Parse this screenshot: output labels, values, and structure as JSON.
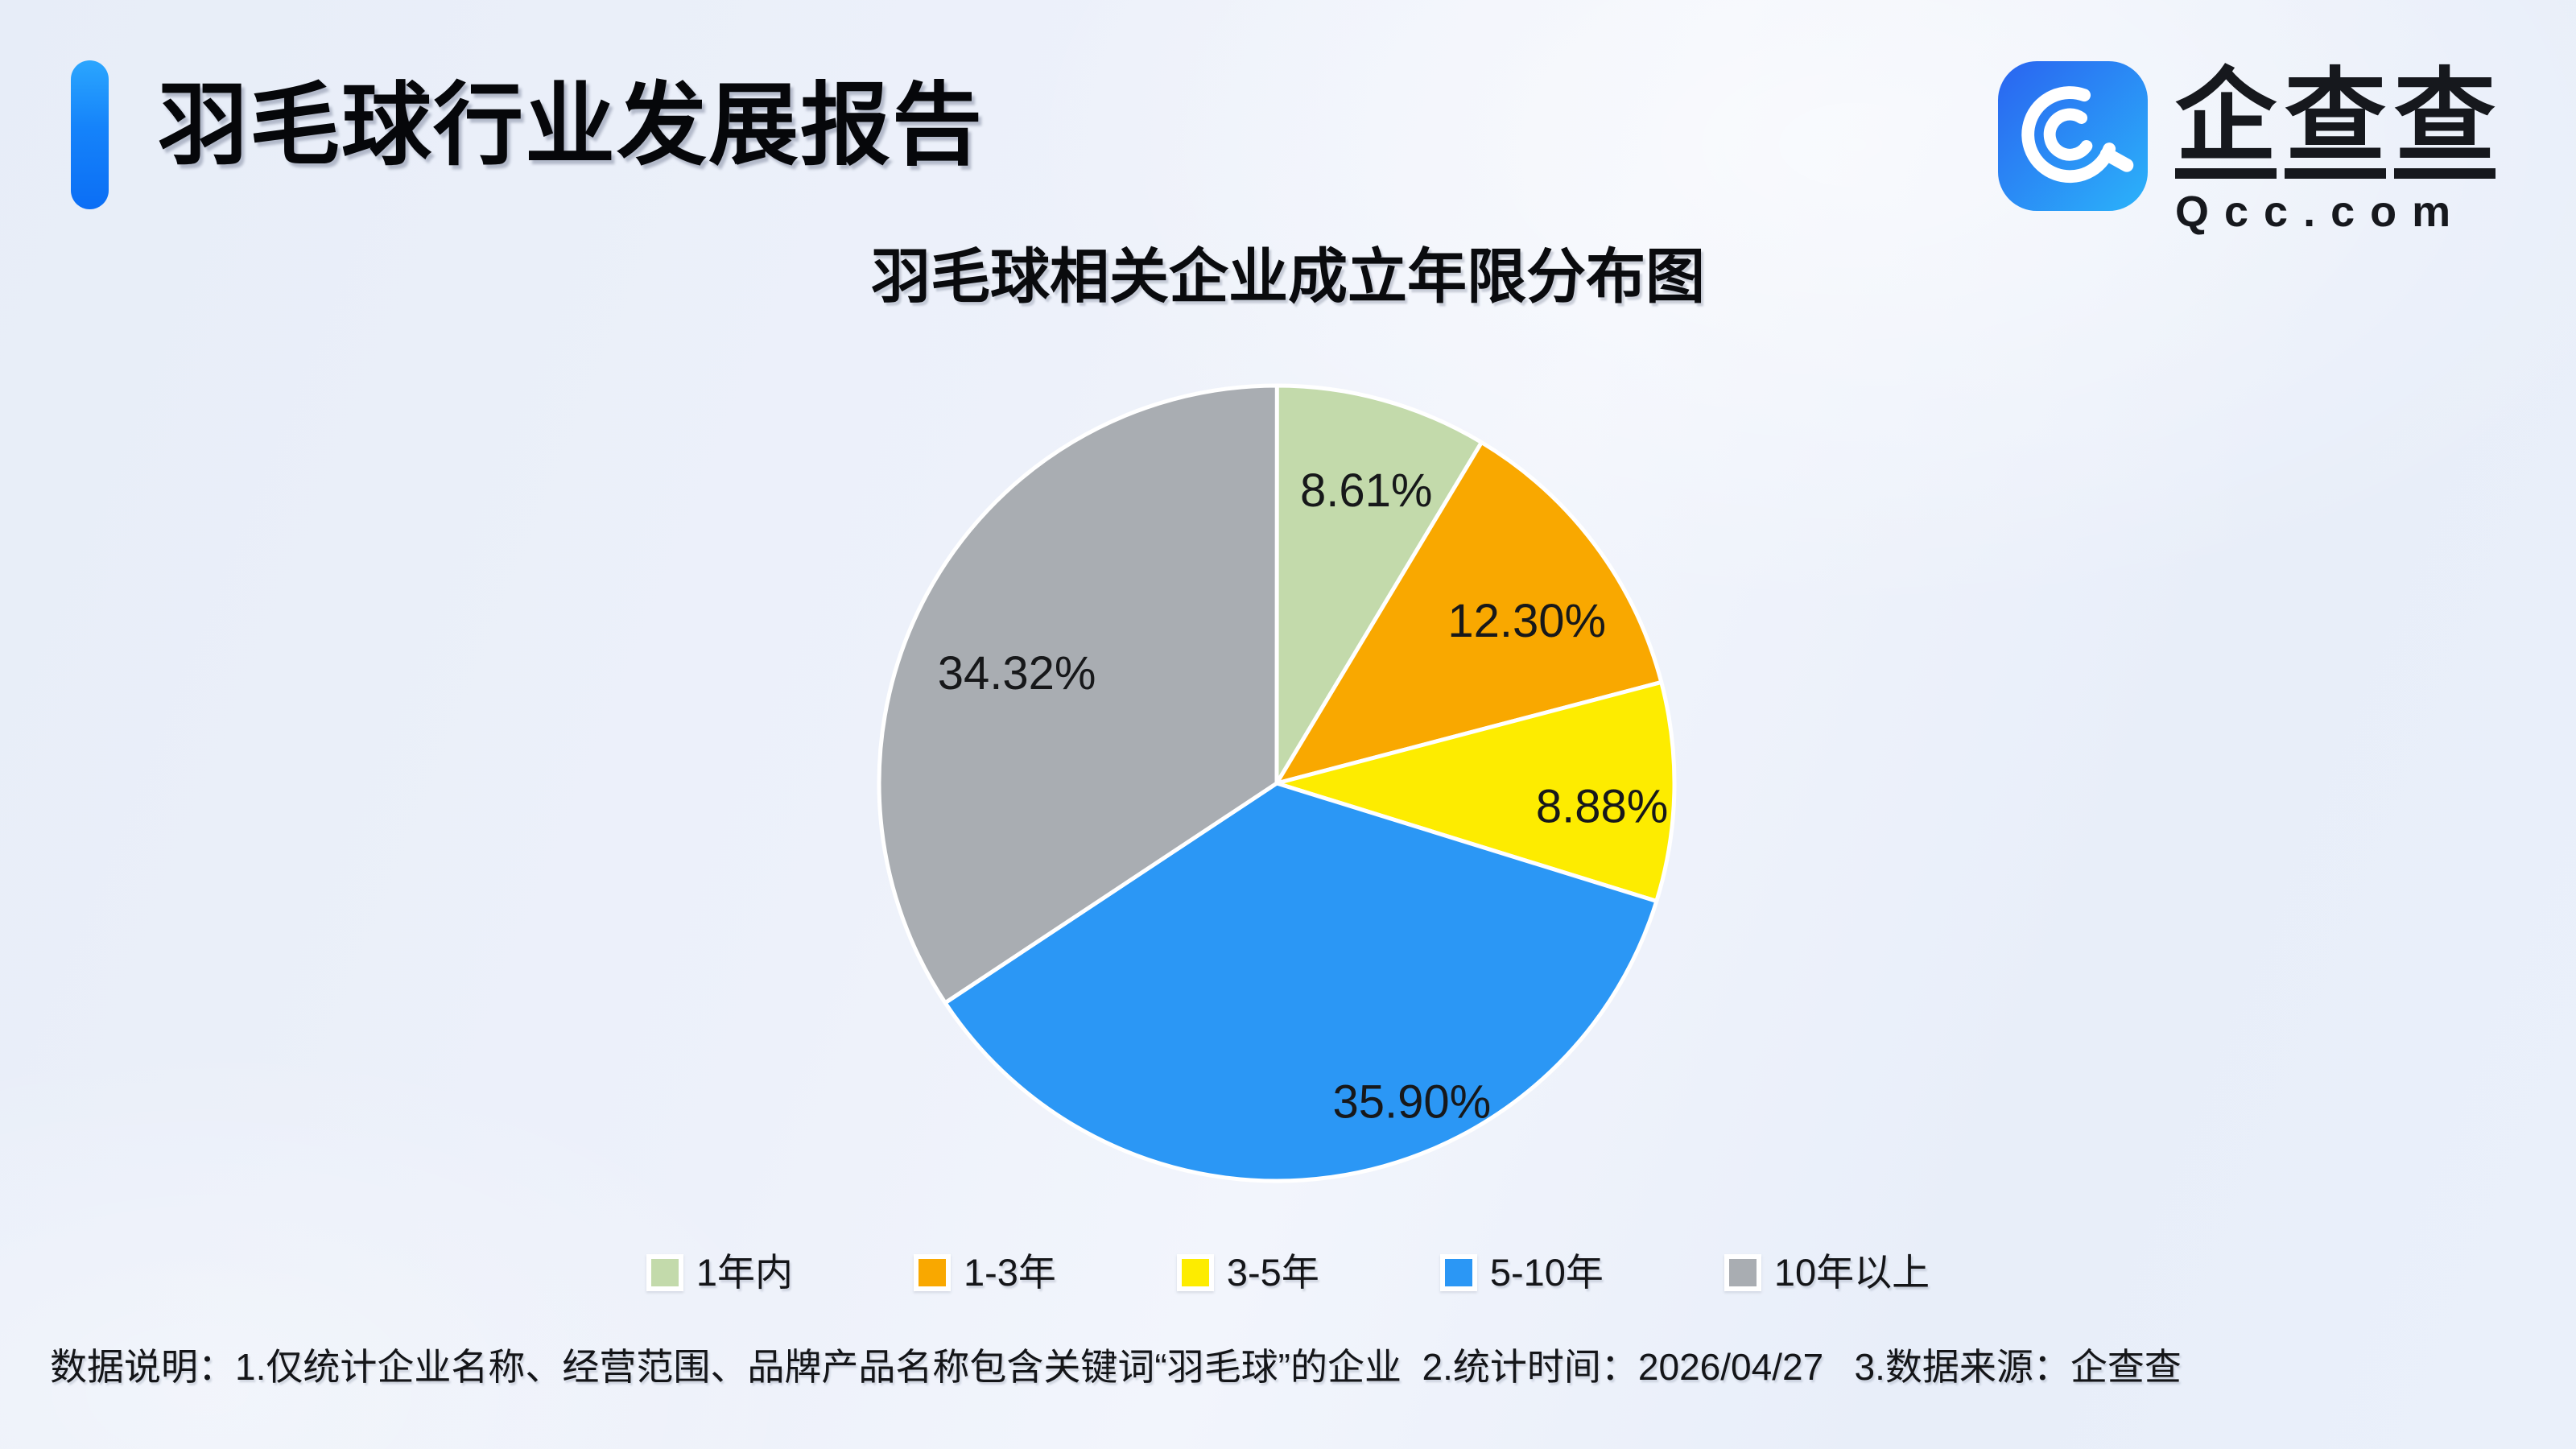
{
  "header": {
    "title": "羽毛球行业发展报告",
    "accent_color": "#1583fa"
  },
  "logo": {
    "brand": "企查查",
    "domain": "Qcc.com",
    "icon": "qcc-magnifier-icon",
    "icon_gradient": [
      "#2A64F0",
      "#2BB3FA"
    ]
  },
  "chart_data": {
    "type": "pie",
    "title": "羽毛球相关企业成立年限分布图",
    "unit": "%",
    "start_angle": "top",
    "direction": "clockwise",
    "legend_position": "bottom",
    "series": [
      {
        "name": "1年内",
        "value": 8.61,
        "label": "8.61%",
        "color": "#C3DAAB"
      },
      {
        "name": "1-3年",
        "value": 12.3,
        "label": "12.30%",
        "color": "#F9A800"
      },
      {
        "name": "3-5年",
        "value": 8.88,
        "label": "8.88%",
        "color": "#FDEC00"
      },
      {
        "name": "5-10年",
        "value": 35.9,
        "label": "35.90%",
        "color": "#2B97F5"
      },
      {
        "name": "10年以上",
        "value": 34.32,
        "label": "34.32%",
        "color": "#A9ADB2"
      }
    ],
    "label_layout": [
      {
        "angle_deg": 17,
        "radius_ratio": 0.77
      },
      {
        "angle_deg": 57,
        "radius_ratio": 0.75
      },
      {
        "angle_deg": 94,
        "radius_ratio": 0.82
      },
      {
        "angle_deg": 157,
        "radius_ratio": 0.87
      },
      {
        "angle_deg": 293,
        "radius_ratio": 0.71
      }
    ]
  },
  "footnote": {
    "text": "数据说明：1.仅统计企业名称、经营范围、品牌产品名称包含关键词“羽毛球”的企业  2.统计时间：2026/04/27   3.数据来源：企查查"
  }
}
